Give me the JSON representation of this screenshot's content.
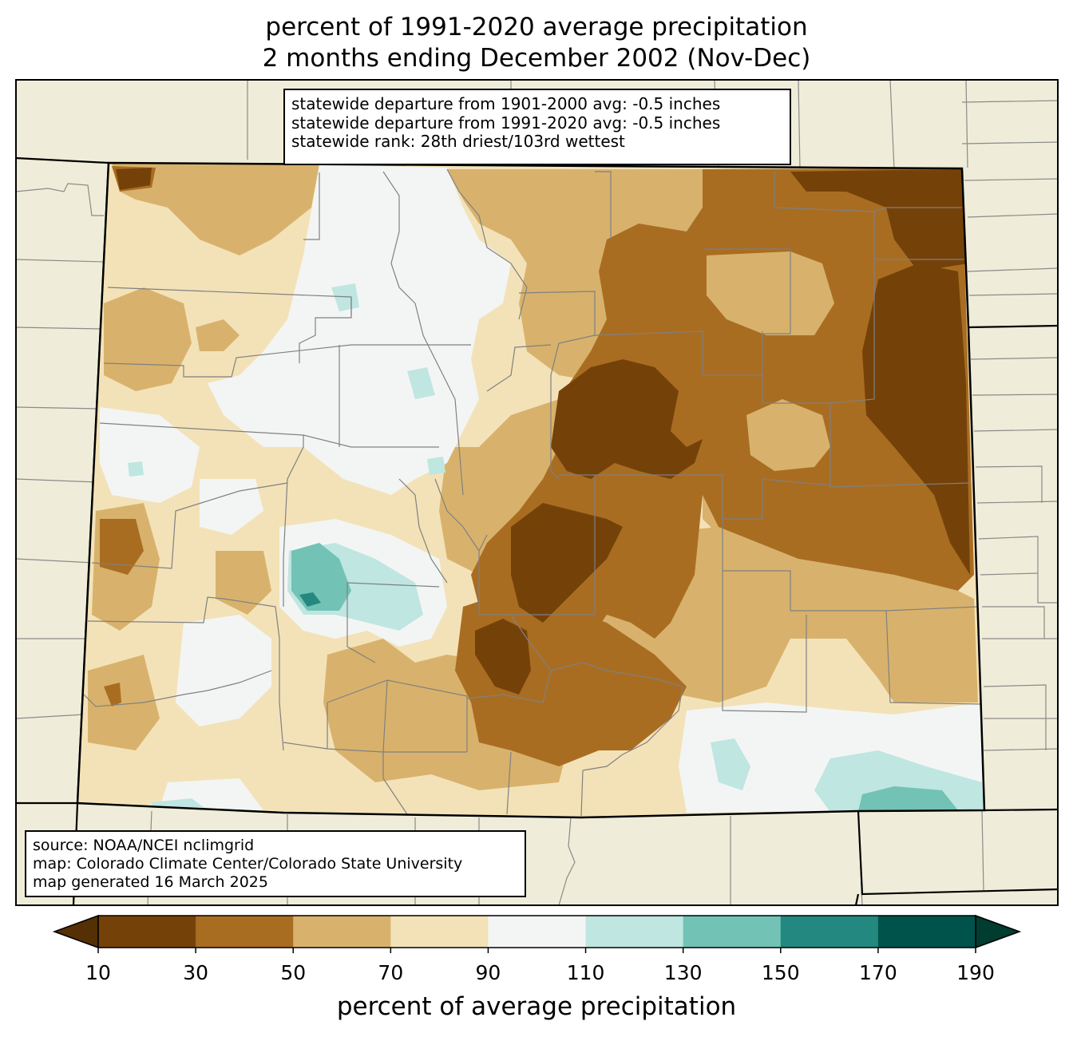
{
  "title": {
    "line1": "percent of 1991-2020 average precipitation",
    "line2": "2 months ending December 2002 (Nov-Dec)"
  },
  "stats_box": {
    "line1": "statewide departure from 1901-2000 avg: -0.5 inches",
    "line2": "statewide departure from 1991-2020 avg: -0.5 inches",
    "line3": "statewide rank: 28th driest/103rd wettest"
  },
  "source_box": {
    "line1": "source: NOAA/NCEI nclimgrid",
    "line2": "map: Colorado Climate Center/Colorado State University",
    "line3": "map generated 16 March 2025"
  },
  "colorbar": {
    "label": "percent of average precipitation",
    "ticks": [
      "10",
      "30",
      "50",
      "70",
      "90",
      "110",
      "130",
      "150",
      "170",
      "190"
    ],
    "colors": [
      "#744209",
      "#a96d22",
      "#d8b26c",
      "#f3e2b8",
      "#f3f5f4",
      "#bfe6e1",
      "#72c2b5",
      "#238880",
      "#00534a"
    ],
    "under_color": "#553004",
    "over_color": "#003c30"
  },
  "map": {
    "region": "Colorado",
    "land_color": "#efedd9",
    "dominant_category": "30-50 percent"
  }
}
